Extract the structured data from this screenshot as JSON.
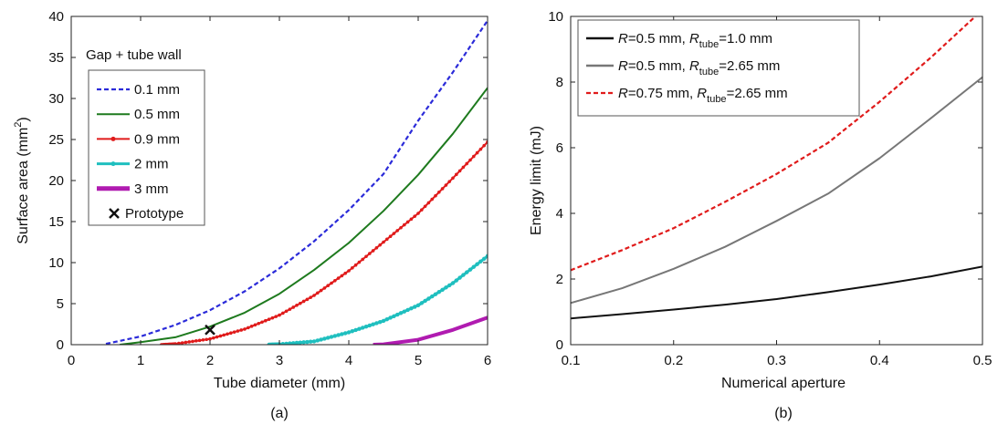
{
  "figure": {
    "panels": [
      {
        "id": "a",
        "caption": "(a)"
      },
      {
        "id": "b",
        "caption": "(b)"
      }
    ]
  },
  "chart_data": [
    {
      "type": "line",
      "panel": "(a)",
      "xlabel": "Tube diameter (mm)",
      "ylabel_main": "Surface area (mm",
      "ylabel_sup": "2",
      "ylabel_end": ")",
      "xlim": [
        0,
        6
      ],
      "ylim": [
        0,
        40
      ],
      "xticks": [
        0,
        1,
        2,
        3,
        4,
        5,
        6
      ],
      "yticks": [
        0,
        5,
        10,
        15,
        20,
        25,
        30,
        35,
        40
      ],
      "grid": false,
      "legend_title": "Gap + tube wall",
      "legend_position": "top-left",
      "series": [
        {
          "name": "0.1 mm",
          "color": "#2b2bd9",
          "style": "dashed",
          "x": [
            0.5,
            1.0,
            1.5,
            2.0,
            2.5,
            3.0,
            3.5,
            4.0,
            4.5,
            5.0,
            5.5,
            6.0
          ],
          "y": [
            0.1,
            1.0,
            2.4,
            4.2,
            6.5,
            9.3,
            12.6,
            16.4,
            20.8,
            27.3,
            33.2,
            39.5
          ]
        },
        {
          "name": "0.5 mm",
          "color": "#1e7a1e",
          "style": "solid",
          "x": [
            0.7,
            1.0,
            1.5,
            2.0,
            2.5,
            3.0,
            3.5,
            4.0,
            4.5,
            5.0,
            5.5,
            6.0
          ],
          "y": [
            0.0,
            0.3,
            0.9,
            2.2,
            3.9,
            6.2,
            9.1,
            12.4,
            16.3,
            20.7,
            25.7,
            31.3
          ]
        },
        {
          "name": "0.9 mm",
          "color": "#e01b1b",
          "style": "dotted-markers",
          "x": [
            1.3,
            1.5,
            2.0,
            2.5,
            3.0,
            3.5,
            4.0,
            4.5,
            5.0,
            5.5,
            6.0
          ],
          "y": [
            0.0,
            0.1,
            0.7,
            1.9,
            3.6,
            6.0,
            9.0,
            12.5,
            16.0,
            20.3,
            24.7
          ]
        },
        {
          "name": "2 mm",
          "color": "#1fbfbf",
          "style": "thick-markers",
          "x": [
            2.85,
            3.0,
            3.5,
            4.0,
            4.5,
            5.0,
            5.5,
            6.0
          ],
          "y": [
            0.0,
            0.05,
            0.4,
            1.5,
            2.9,
            4.8,
            7.5,
            10.8
          ]
        },
        {
          "name": "3 mm",
          "color": "#b01bb0",
          "style": "thick",
          "x": [
            4.35,
            4.5,
            5.0,
            5.5,
            6.0
          ],
          "y": [
            0.0,
            0.05,
            0.6,
            1.8,
            3.3
          ]
        },
        {
          "name": "Prototype",
          "color": "#111111",
          "style": "marker-x",
          "x": [
            2.0
          ],
          "y": [
            1.8
          ]
        }
      ]
    },
    {
      "type": "line",
      "panel": "(b)",
      "xlabel": "Numerical aperture",
      "ylabel": "Energy limit (mJ)",
      "xlim": [
        0.1,
        0.5
      ],
      "ylim": [
        0,
        10
      ],
      "xticks": [
        0.1,
        0.2,
        0.3,
        0.4,
        0.5
      ],
      "yticks": [
        0,
        2,
        4,
        6,
        8,
        10
      ],
      "grid": false,
      "legend_position": "top-left",
      "series": [
        {
          "name": "R=0.5 mm, Rtube=1.0 mm",
          "label_r": "R",
          "label_a": "=0.5 mm, ",
          "label_rt": "R",
          "label_sub": "tube",
          "label_b": "=1.0 mm",
          "color": "#111111",
          "style": "solid",
          "x": [
            0.1,
            0.15,
            0.2,
            0.25,
            0.3,
            0.35,
            0.4,
            0.45,
            0.5
          ],
          "y": [
            0.8,
            0.93,
            1.07,
            1.22,
            1.39,
            1.6,
            1.83,
            2.08,
            2.38
          ]
        },
        {
          "name": "R=0.5 mm, Rtube=2.65 mm",
          "label_r": "R",
          "label_a": "=0.5 mm, ",
          "label_rt": "R",
          "label_sub": "tube",
          "label_b": "=2.65 mm",
          "color": "#777777",
          "style": "solid",
          "x": [
            0.1,
            0.15,
            0.2,
            0.25,
            0.3,
            0.35,
            0.4,
            0.45,
            0.5
          ],
          "y": [
            1.27,
            1.72,
            2.31,
            2.98,
            3.77,
            4.6,
            5.68,
            6.9,
            8.15
          ]
        },
        {
          "name": "R=0.75 mm, Rtube=2.65 mm",
          "label_r": "R",
          "label_a": "=0.75 mm, ",
          "label_rt": "R",
          "label_sub": "tube",
          "label_b": "=2.65 mm",
          "color": "#e01b1b",
          "style": "dashed",
          "x": [
            0.1,
            0.15,
            0.2,
            0.25,
            0.3,
            0.35,
            0.4,
            0.45,
            0.5
          ],
          "y": [
            2.27,
            2.88,
            3.55,
            4.35,
            5.2,
            6.15,
            7.4,
            8.75,
            10.2
          ]
        }
      ]
    }
  ]
}
